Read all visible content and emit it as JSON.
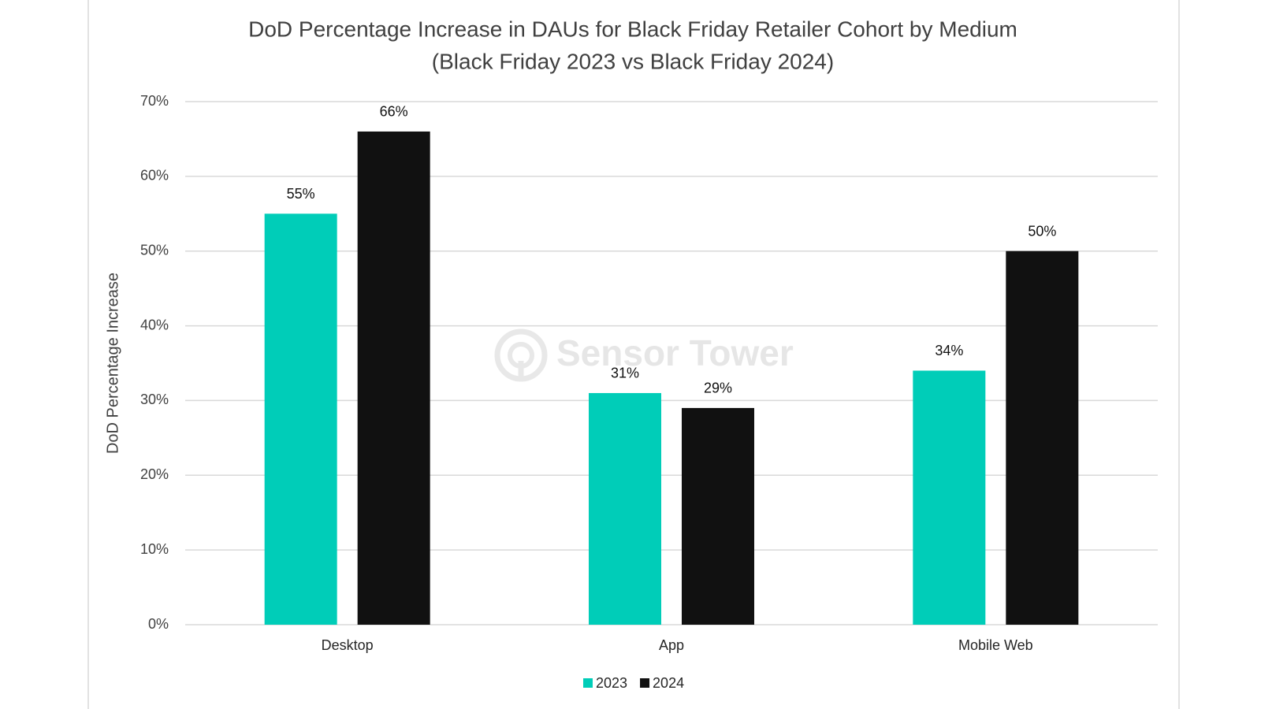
{
  "chart_data": {
    "type": "bar",
    "title": "DoD Percentage Increase in DAUs for Black Friday Retailer Cohort by Medium",
    "subtitle": "(Black Friday 2023 vs Black Friday 2024)",
    "y_label": "DoD Percentage Increase",
    "watermark": "Sensor Tower",
    "categories": [
      "Desktop",
      "App",
      "Mobile Web"
    ],
    "series": [
      {
        "name": "2023",
        "color": "#00cdb8",
        "values": [
          55,
          31,
          34
        ],
        "value_labels": [
          "55%",
          "31%",
          "34%"
        ]
      },
      {
        "name": "2024",
        "color": "#111111",
        "values": [
          66,
          29,
          50
        ],
        "value_labels": [
          "66%",
          "29%",
          "50%"
        ]
      }
    ],
    "ylim": [
      0,
      70
    ],
    "yticks": [
      {
        "value": 0,
        "label": "0%"
      },
      {
        "value": 10,
        "label": "10%"
      },
      {
        "value": 20,
        "label": "20%"
      },
      {
        "value": 30,
        "label": "30%"
      },
      {
        "value": 40,
        "label": "40%"
      },
      {
        "value": 50,
        "label": "50%"
      },
      {
        "value": 60,
        "label": "60%"
      },
      {
        "value": 70,
        "label": "70%"
      }
    ],
    "grid": true,
    "legend": "bottom"
  }
}
